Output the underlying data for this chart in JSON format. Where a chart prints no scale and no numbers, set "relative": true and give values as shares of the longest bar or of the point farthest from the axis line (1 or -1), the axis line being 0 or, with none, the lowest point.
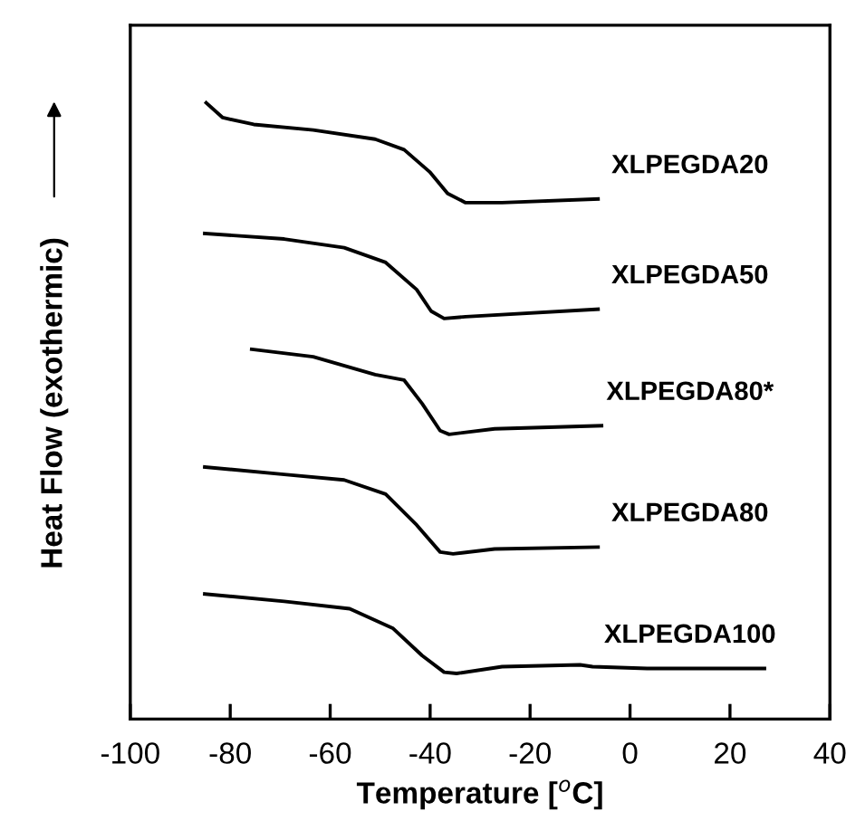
{
  "chart_data": {
    "type": "line",
    "relative": true,
    "xlabel": "Temperature [$^{o}$C]",
    "ylabel": "Heat Flow (exothermic)",
    "xlim": [
      -100,
      40
    ],
    "xticks": [
      -100,
      -80,
      -60,
      -40,
      -20,
      0,
      20,
      40
    ],
    "grid": false,
    "legend": false,
    "marker": "none",
    "line_style": "solid",
    "tick_labels": "x",
    "series": [
      {
        "name": "XLPEGDA20",
        "color": "#000000",
        "x": [
          -84.8,
          -81.5,
          -75.3,
          -63.4,
          -51.0,
          -45.2,
          -40.1,
          -36.5,
          -32.9,
          -25.6,
          -6.4
        ],
        "values": [
          1.0,
          0.976,
          0.965,
          0.956,
          0.941,
          0.924,
          0.888,
          0.853,
          0.838,
          0.838,
          0.844
        ]
      },
      {
        "name": "XLPEGDA50",
        "color": "#000000",
        "x": [
          -85.1,
          -69.2,
          -57.2,
          -48.9,
          -42.7,
          -39.8,
          -37.2,
          -32.9,
          -6.4
        ],
        "values": [
          0.788,
          0.779,
          0.765,
          0.741,
          0.697,
          0.662,
          0.65,
          0.653,
          0.665
        ]
      },
      {
        "name": "XLPEGDA80*",
        "color": "#000000",
        "x": [
          -75.7,
          -63.4,
          -51.0,
          -45.2,
          -41.6,
          -38.0,
          -36.2,
          -27.1,
          -5.7
        ],
        "values": [
          0.6,
          0.588,
          0.559,
          0.55,
          0.512,
          0.468,
          0.462,
          0.471,
          0.476
        ]
      },
      {
        "name": "XLPEGDA80",
        "color": "#000000",
        "x": [
          -85.1,
          -69.2,
          -57.2,
          -48.9,
          -42.7,
          -38.0,
          -35.4,
          -27.1,
          -6.4
        ],
        "values": [
          0.409,
          0.397,
          0.388,
          0.365,
          0.315,
          0.271,
          0.268,
          0.276,
          0.279
        ]
      },
      {
        "name": "XLPEGDA100",
        "color": "#000000",
        "x": [
          -85.1,
          -69.2,
          -56.1,
          -47.4,
          -41.6,
          -37.2,
          -34.7,
          -25.6,
          -10.0,
          -7.5,
          3.4,
          26.9
        ],
        "values": [
          0.203,
          0.191,
          0.179,
          0.147,
          0.103,
          0.076,
          0.074,
          0.085,
          0.088,
          0.085,
          0.082,
          0.082
        ]
      }
    ]
  }
}
